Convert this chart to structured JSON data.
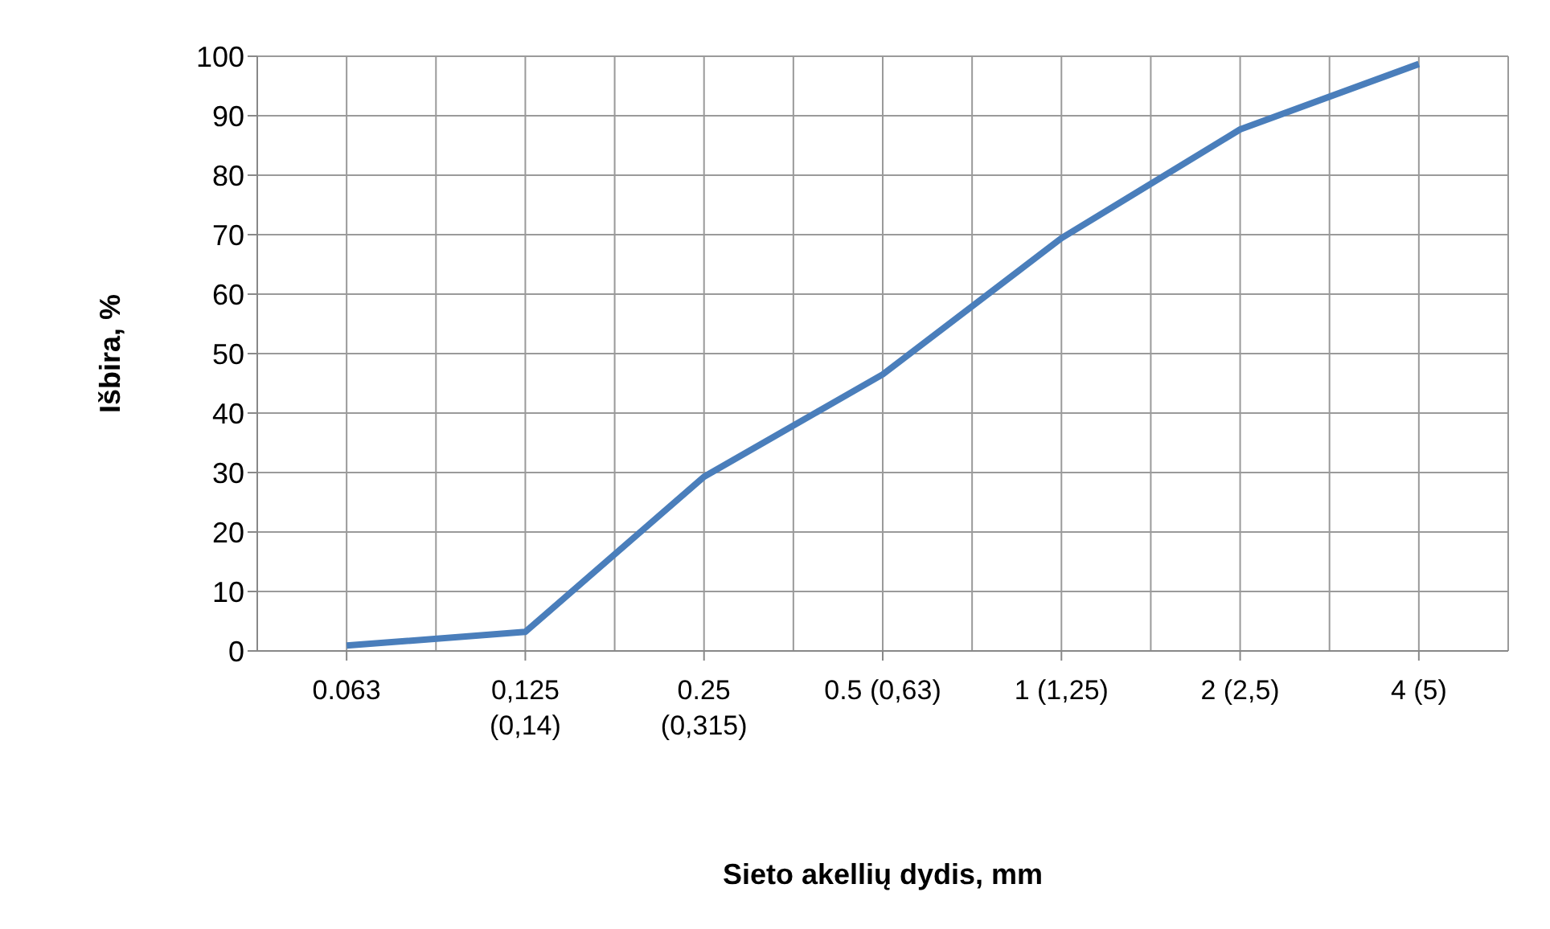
{
  "chart_data": {
    "type": "line",
    "xlabel": "Sieto akellių dydis, mm",
    "ylabel": "Išbira, %",
    "categories": [
      "0.063",
      "0,125\n(0,14)",
      "0.25\n(0,315)",
      "0.5 (0,63)",
      "1 (1,25)",
      "2 (2,5)",
      "4 (5)"
    ],
    "series": [
      {
        "color": "#4a7ebb",
        "values": [
          0.9,
          3.2,
          29.3,
          46.5,
          69.4,
          87.7,
          98.7
        ]
      }
    ],
    "ylim": [
      0,
      100
    ],
    "yticks": [
      0,
      10,
      20,
      30,
      40,
      50,
      60,
      70,
      80,
      90,
      100
    ],
    "grid": true,
    "marker": "none",
    "line_style": "solid"
  }
}
